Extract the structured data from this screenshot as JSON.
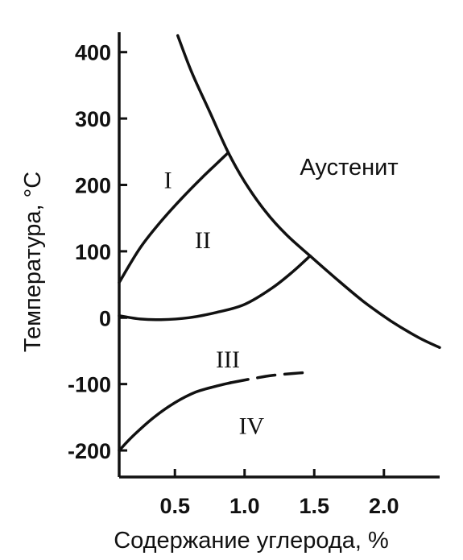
{
  "chart_data": {
    "type": "line",
    "xlabel": "Содержание углерода, %",
    "ylabel": "Температура, °C",
    "xlim": [
      0.1,
      2.4
    ],
    "ylim": [
      -240,
      430
    ],
    "x_ticks": [
      {
        "value": 0.5,
        "label": "0.5"
      },
      {
        "value": 1.0,
        "label": "1.0"
      },
      {
        "value": 1.5,
        "label": "1.5"
      },
      {
        "value": 2.0,
        "label": "2.0"
      }
    ],
    "y_ticks": [
      {
        "value": 400,
        "label": "400"
      },
      {
        "value": 300,
        "label": "300"
      },
      {
        "value": 200,
        "label": "200"
      },
      {
        "value": 100,
        "label": "100"
      },
      {
        "value": 0,
        "label": "0"
      },
      {
        "value": -100,
        "label": "-100"
      },
      {
        "value": -200,
        "label": "-200"
      }
    ],
    "curves": [
      {
        "id": "austenite-boundary",
        "style": "solid",
        "x": [
          0.52,
          0.62,
          0.75,
          0.88,
          1.0,
          1.15,
          1.3,
          1.47,
          1.65,
          1.85,
          2.05,
          2.25,
          2.4
        ],
        "y": [
          425,
          370,
          310,
          250,
          205,
          160,
          125,
          93,
          60,
          25,
          -5,
          -30,
          -45
        ]
      },
      {
        "id": "boundary-I-II",
        "style": "solid",
        "x": [
          0.1,
          0.25,
          0.4,
          0.55,
          0.7,
          0.8,
          0.88
        ],
        "y": [
          53,
          105,
          145,
          180,
          212,
          232,
          248
        ]
      },
      {
        "id": "boundary-II-III",
        "style": "solid",
        "x": [
          0.1,
          0.25,
          0.4,
          0.6,
          0.8,
          1.0,
          1.2,
          1.35,
          1.47
        ],
        "y": [
          3,
          -2,
          -3,
          0,
          8,
          20,
          45,
          70,
          93
        ]
      },
      {
        "id": "boundary-III-IV",
        "style": "solid",
        "x": [
          0.1,
          0.2,
          0.35,
          0.5,
          0.65,
          0.8,
          0.9
        ],
        "y": [
          -200,
          -178,
          -150,
          -128,
          -112,
          -103,
          -98
        ]
      },
      {
        "id": "boundary-III-IV-dashed",
        "style": "dashed",
        "x": [
          0.9,
          1.05,
          1.2,
          1.35,
          1.48
        ],
        "y": [
          -98,
          -92,
          -87,
          -84,
          -82
        ]
      }
    ],
    "regions": [
      {
        "label": "I",
        "x": 0.45,
        "y": 195
      },
      {
        "label": "II",
        "x": 0.7,
        "y": 105
      },
      {
        "label": "III",
        "x": 0.88,
        "y": -75
      },
      {
        "label": "IV",
        "x": 1.05,
        "y": -175
      }
    ],
    "annotations": [
      {
        "text": "Аустенит",
        "x": 1.75,
        "y": 215
      }
    ]
  }
}
